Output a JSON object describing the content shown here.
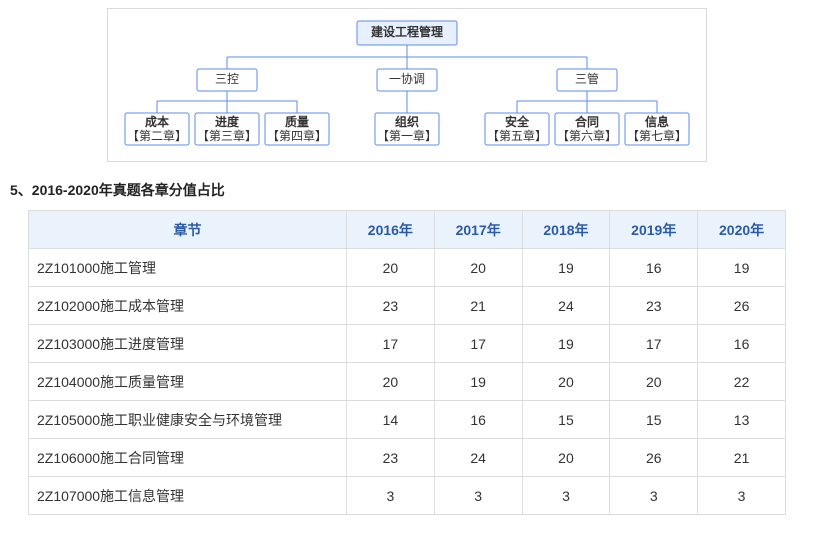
{
  "tree": {
    "root": {
      "label": "建设工程管理",
      "bg": "#e8f0fe",
      "border": "#5b8def"
    },
    "mids": [
      {
        "label": "三控"
      },
      {
        "label": "一协调"
      },
      {
        "label": "三管"
      }
    ],
    "leaves": [
      {
        "top": "成本",
        "bottom": "【第二章】"
      },
      {
        "top": "进度",
        "bottom": "【第三章】"
      },
      {
        "top": "质量",
        "bottom": "【第四章】"
      },
      {
        "top": "组织",
        "bottom": "【第一章】"
      },
      {
        "top": "安全",
        "bottom": "【第五章】"
      },
      {
        "top": "合同",
        "bottom": "【第六章】"
      },
      {
        "top": "信息",
        "bottom": "【第七章】"
      }
    ],
    "line_color": "#5b8def"
  },
  "section_title": "5、2016-2020年真题各章分值占比",
  "table": {
    "header_bg": "#eaf2fc",
    "header_color": "#2b5aa6",
    "border_color": "#dddddd",
    "columns": [
      "章节",
      "2016年",
      "2017年",
      "2018年",
      "2019年",
      "2020年"
    ],
    "rows": [
      {
        "chapter": "2Z101000施工管理",
        "vals": [
          "20",
          "20",
          "19",
          "16",
          "19"
        ]
      },
      {
        "chapter": "2Z102000施工成本管理",
        "vals": [
          "23",
          "21",
          "24",
          "23",
          "26"
        ]
      },
      {
        "chapter": "2Z103000施工进度管理",
        "vals": [
          "17",
          "17",
          "19",
          "17",
          "16"
        ]
      },
      {
        "chapter": "2Z104000施工质量管理",
        "vals": [
          "20",
          "19",
          "20",
          "20",
          "22"
        ]
      },
      {
        "chapter": "2Z105000施工职业健康安全与环境管理",
        "vals": [
          "14",
          "16",
          "15",
          "15",
          "13"
        ]
      },
      {
        "chapter": "2Z106000施工合同管理",
        "vals": [
          "23",
          "24",
          "20",
          "26",
          "21"
        ]
      },
      {
        "chapter": "2Z107000施工信息管理",
        "vals": [
          "3",
          "3",
          "3",
          "3",
          "3"
        ]
      }
    ]
  }
}
